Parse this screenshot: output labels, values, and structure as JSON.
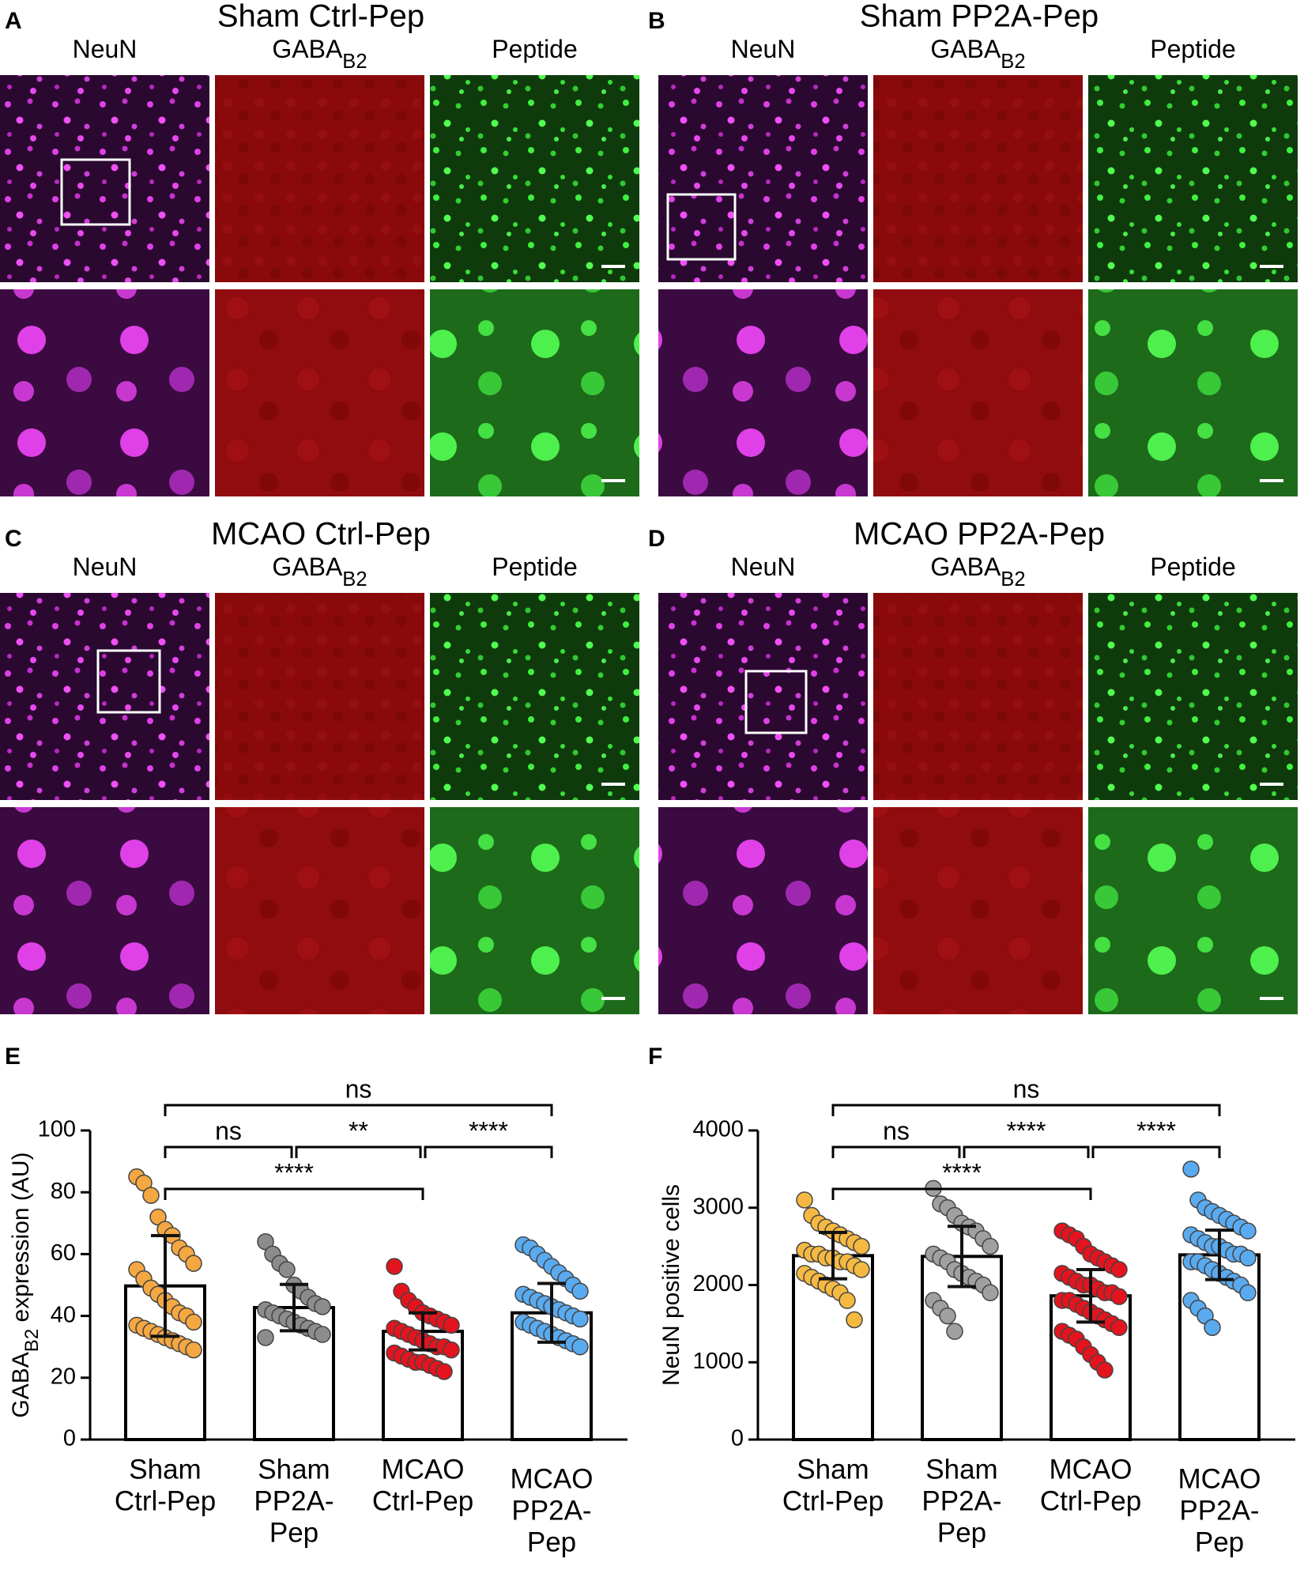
{
  "panels": [
    {
      "letter": "A",
      "title": "Sham Ctrl-Pep",
      "columns": [
        {
          "text": "NeuN"
        },
        {
          "text": "GABA",
          "sub": "B2"
        },
        {
          "text": "Peptide"
        }
      ]
    },
    {
      "letter": "B",
      "title": "Sham PP2A-Pep",
      "columns": [
        {
          "text": "NeuN"
        },
        {
          "text": "GABA",
          "sub": "B2"
        },
        {
          "text": "Peptide"
        }
      ]
    },
    {
      "letter": "C",
      "title": "MCAO Ctrl-Pep",
      "columns": [
        {
          "text": "NeuN"
        },
        {
          "text": "GABA",
          "sub": "B2"
        },
        {
          "text": "Peptide"
        }
      ]
    },
    {
      "letter": "D",
      "title": "MCAO PP2A-Pep",
      "columns": [
        {
          "text": "NeuN"
        },
        {
          "text": "GABA",
          "sub": "B2"
        },
        {
          "text": "Peptide"
        }
      ]
    }
  ],
  "chart_data": [
    {
      "type": "bar",
      "panel": "E",
      "ylabel": {
        "text": "GABA",
        "sub": "B2",
        "rest": " expression (AU)"
      },
      "categories": [
        [
          "Sham",
          "Ctrl-Pep"
        ],
        [
          "Sham",
          "PP2A-",
          "Pep"
        ],
        [
          "MCAO",
          "Ctrl-Pep"
        ],
        [
          "MCAO",
          "PP2A-",
          "Pep"
        ]
      ],
      "colors": [
        "#f5a742",
        "#8c8c8c",
        "#e3141e",
        "#5aaaf0"
      ],
      "means": [
        49.7,
        42.7,
        35,
        41
      ],
      "sd": [
        16.3,
        7.5,
        6,
        9.5
      ],
      "points": [
        [
          85,
          83,
          79,
          72,
          68,
          66,
          62,
          60,
          57,
          55,
          52,
          49,
          47,
          45,
          43,
          41,
          40,
          38,
          37,
          36,
          35,
          34,
          33,
          32,
          31,
          30,
          29
        ],
        [
          64,
          60,
          57,
          55,
          50,
          48,
          46,
          44,
          43,
          42,
          41,
          40,
          39,
          38,
          37,
          36,
          35,
          34,
          33
        ],
        [
          56,
          48,
          45,
          43,
          41,
          40,
          39,
          38,
          37,
          36,
          35,
          34,
          33,
          32,
          31,
          30,
          30,
          29,
          28,
          27,
          26,
          25,
          25,
          24,
          23,
          22
        ],
        [
          63,
          62,
          60,
          58,
          56,
          54,
          52,
          50,
          48,
          47,
          46,
          45,
          44,
          43,
          42,
          41,
          40,
          39,
          38,
          37,
          36,
          35,
          34,
          33,
          32,
          31,
          30
        ]
      ],
      "ylim": [
        0,
        100
      ],
      "yticks": [
        0,
        20,
        40,
        60,
        80,
        100
      ],
      "brackets": [
        {
          "from": 0,
          "to": 3,
          "label": "ns"
        },
        {
          "from": 0,
          "to": 1,
          "label": "ns"
        },
        {
          "from": 1,
          "to": 2,
          "label": "**"
        },
        {
          "from": 2,
          "to": 3,
          "label": "****"
        },
        {
          "from": 0,
          "to": 2,
          "label": "****"
        }
      ]
    },
    {
      "type": "bar",
      "panel": "F",
      "ylabel": {
        "text": "NeuN positive cells"
      },
      "categories": [
        [
          "Sham",
          "Ctrl-Pep"
        ],
        [
          "Sham",
          "PP2A-",
          "Pep"
        ],
        [
          "MCAO",
          "Ctrl-Pep"
        ],
        [
          "MCAO",
          "PP2A-",
          "Pep"
        ]
      ],
      "colors": [
        "#f5b942",
        "#a0a0a0",
        "#e3141e",
        "#5aaaf0"
      ],
      "means": [
        2380,
        2370,
        1860,
        2390
      ],
      "sd": [
        300,
        390,
        340,
        320
      ],
      "points": [
        [
          3100,
          2900,
          2800,
          2750,
          2700,
          2650,
          2600,
          2550,
          2500,
          2450,
          2400,
          2400,
          2350,
          2350,
          2300,
          2300,
          2250,
          2200,
          2150,
          2100,
          2050,
          2000,
          1950,
          1900,
          1800,
          1550
        ],
        [
          3250,
          3050,
          3000,
          2900,
          2800,
          2750,
          2700,
          2600,
          2500,
          2400,
          2350,
          2300,
          2200,
          2150,
          2100,
          2050,
          2000,
          1900,
          1800,
          1700,
          1600,
          1400
        ],
        [
          2700,
          2650,
          2600,
          2500,
          2400,
          2350,
          2300,
          2250,
          2200,
          2150,
          2100,
          2050,
          2000,
          2000,
          1950,
          1900,
          1900,
          1850,
          1800,
          1800,
          1750,
          1700,
          1650,
          1600,
          1550,
          1500,
          1450,
          1400,
          1350,
          1300,
          1200,
          1100,
          1000,
          900
        ],
        [
          3500,
          3100,
          3000,
          2950,
          2900,
          2850,
          2800,
          2750,
          2700,
          2650,
          2600,
          2550,
          2500,
          2500,
          2450,
          2400,
          2400,
          2350,
          2300,
          2300,
          2250,
          2200,
          2150,
          2100,
          2050,
          2000,
          1900,
          1800,
          1700,
          1600,
          1450
        ]
      ],
      "ylim": [
        0,
        4000
      ],
      "yticks": [
        0,
        1000,
        2000,
        3000,
        4000
      ],
      "brackets": [
        {
          "from": 0,
          "to": 3,
          "label": "ns"
        },
        {
          "from": 0,
          "to": 1,
          "label": "ns"
        },
        {
          "from": 1,
          "to": 2,
          "label": "****"
        },
        {
          "from": 2,
          "to": 3,
          "label": "****"
        },
        {
          "from": 0,
          "to": 2,
          "label": "****"
        }
      ]
    }
  ]
}
